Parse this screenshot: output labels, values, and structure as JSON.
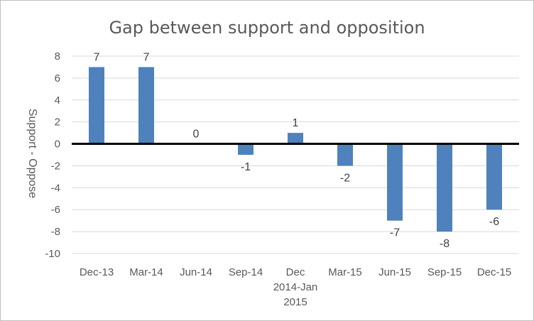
{
  "chart_data": {
    "type": "bar",
    "title": "Gap between support and opposition",
    "xlabel": "",
    "ylabel": "Support - Oppose",
    "categories": [
      "Dec-13",
      "Mar-14",
      "Jun-14",
      "Sep-14",
      "Dec 2014-Jan 2015",
      "Mar-15",
      "Jun-15",
      "Sep-15",
      "Dec-15"
    ],
    "category_lines": [
      [
        "Dec-13"
      ],
      [
        "Mar-14"
      ],
      [
        "Jun-14"
      ],
      [
        "Sep-14"
      ],
      [
        "Dec",
        "2014-Jan",
        "2015"
      ],
      [
        "Mar-15"
      ],
      [
        "Jun-15"
      ],
      [
        "Sep-15"
      ],
      [
        "Dec-15"
      ]
    ],
    "values": [
      7,
      7,
      0,
      -1,
      1,
      -2,
      -7,
      -8,
      -6
    ],
    "data_labels": [
      "7",
      "7",
      "0",
      "-1",
      "1",
      "-2",
      "-7",
      "-8",
      "-6"
    ],
    "ylim": [
      -10,
      8
    ],
    "yticks": [
      8,
      6,
      4,
      2,
      0,
      -2,
      -4,
      -6,
      -8,
      -10
    ],
    "grid": true,
    "legend": "none",
    "colors": {
      "bar": "#4f81bd",
      "grid": "#d9d9d9",
      "zero_line": "#000000",
      "text": "#595959"
    }
  }
}
